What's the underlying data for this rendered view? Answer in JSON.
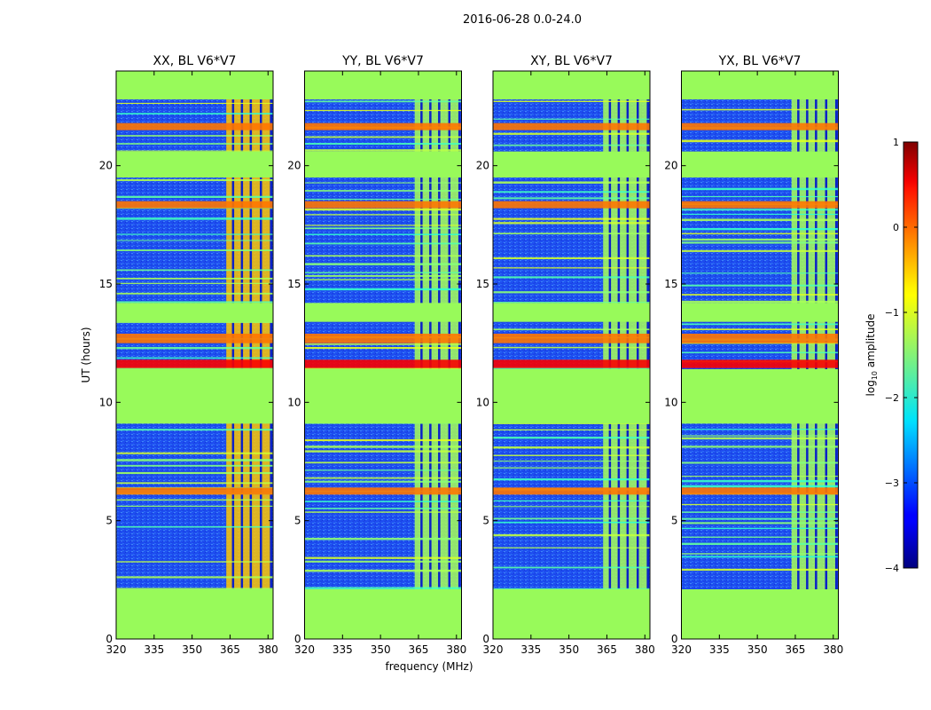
{
  "chart_data": {
    "type": "heatmap",
    "suptitle": "2016-06-28 0.0-24.0",
    "xlabel": "frequency (MHz)",
    "ylabel": "UT (hours)",
    "xlim": [
      320,
      382
    ],
    "ylim": [
      0,
      24
    ],
    "x_ticks": [
      320,
      335,
      350,
      365,
      380
    ],
    "y_ticks": [
      0,
      5,
      10,
      15,
      20
    ],
    "grid": false,
    "panels": [
      {
        "title": "XX, BL V6*V7"
      },
      {
        "title": "YY, BL V6*V7"
      },
      {
        "title": "XY, BL V6*V7"
      },
      {
        "title": "YX, BL V6*V7"
      }
    ],
    "flagged_value": -1.1,
    "background_noise_level": -3.0,
    "flagged_time_ranges_hours": [
      [
        0,
        2.1
      ],
      [
        9.1,
        11.4
      ],
      [
        13.4,
        14.2
      ],
      [
        19.5,
        20.6
      ],
      [
        22.8,
        24
      ]
    ],
    "strong_rfi_band_mhz": [
      363.5,
      381
    ],
    "strong_rfi_channels_mhz": [
      364,
      367.5,
      371,
      375,
      379
    ],
    "high_amplitude_time_ranges_hours": [
      [
        11.45,
        11.8
      ],
      [
        12.5,
        12.9
      ],
      [
        18.2,
        18.5
      ],
      [
        21.5,
        21.8
      ],
      [
        6.1,
        6.4
      ]
    ],
    "colorbar": {
      "label_main": "log",
      "label_sub": "10",
      "label_rest": " amplitude",
      "range": [
        -4,
        1
      ],
      "ticks": [
        1,
        0,
        -1,
        -2,
        -3,
        -4
      ],
      "tick_labels": [
        "1",
        "0",
        "−1",
        "−2",
        "−3",
        "−4"
      ],
      "colormap": "jet"
    },
    "colors": {
      "flagged": "#98fa5a",
      "background": "#1e50f0",
      "axes": "#000000"
    }
  }
}
